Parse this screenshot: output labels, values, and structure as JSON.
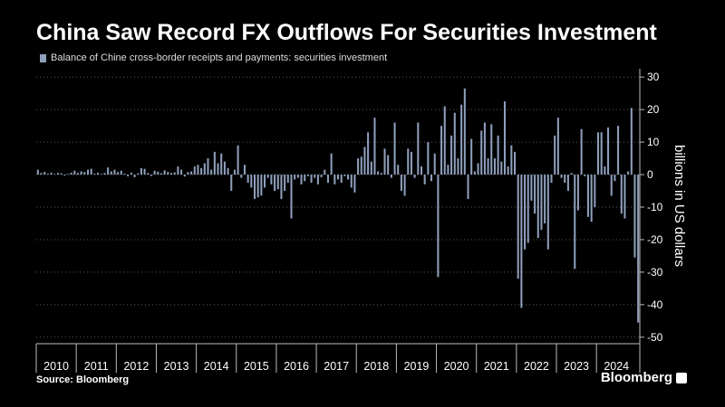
{
  "title": "China Saw Record FX Outflows For Securities Investment",
  "source": "Source: Bloomberg",
  "brand": "Bloomberg",
  "colors": {
    "bar": "#8fa0bd",
    "background": "#000000",
    "grid": "#5a5a5a",
    "text": "#ffffff"
  },
  "chart_data": {
    "type": "bar",
    "title": "China Saw Record FX Outflows For Securities Investment",
    "ylabel": "billions in US dollars",
    "y_axis_side": "right",
    "ylim": [
      -52,
      32
    ],
    "yticks": [
      30,
      20,
      10,
      0,
      -10,
      -20,
      -30,
      -40,
      -50
    ],
    "grid": true,
    "legend": "top-left",
    "x_axis_labels": [
      "2010",
      "2011",
      "2012",
      "2013",
      "2014",
      "2015",
      "2016",
      "2017",
      "2018",
      "2019",
      "2020",
      "2021",
      "2022",
      "2023",
      "2024"
    ],
    "series": [
      {
        "name": "Balance of Chine cross-border receipts and payments: securities investment",
        "frequency": "monthly",
        "start": "2010-01",
        "end": "2024-09",
        "values": [
          1.5,
          0.5,
          0.8,
          0.3,
          0.6,
          0.2,
          0.5,
          0.4,
          -0.3,
          0.2,
          0.6,
          1.2,
          0.5,
          1.0,
          0.8,
          1.5,
          1.8,
          0.3,
          0.6,
          0.2,
          0.5,
          2.2,
          1.0,
          1.5,
          0.8,
          1.2,
          0.3,
          -0.5,
          0.6,
          -0.8,
          0.4,
          2.0,
          1.8,
          0.5,
          -0.4,
          1.2,
          0.9,
          0.4,
          1.3,
          0.8,
          0.5,
          0.7,
          2.5,
          1.5,
          -0.6,
          0.8,
          1.0,
          2.5,
          3.0,
          2.0,
          3.5,
          5.0,
          1.5,
          7.0,
          3.5,
          6.5,
          4.0,
          2.0,
          -5.0,
          1.5,
          9.0,
          -1.0,
          3.0,
          -2.5,
          -4.0,
          -7.5,
          -7.0,
          -6.5,
          -4.0,
          -1.0,
          -3.0,
          -5.0,
          -4.5,
          -7.5,
          -5.0,
          -2.5,
          -13.5,
          -1.5,
          -1.0,
          -3.0,
          -2.0,
          -0.5,
          -2.5,
          -1.0,
          -3.0,
          -0.8,
          1.5,
          -2.5,
          6.5,
          -3.0,
          -1.5,
          -2.5,
          -0.5,
          -1.5,
          -4.0,
          -5.5,
          5.0,
          5.5,
          8.5,
          13.0,
          4.0,
          17.5,
          1.0,
          0.5,
          8.0,
          6.0,
          -1.0,
          16.0,
          3.0,
          -5.0,
          -6.5,
          8.0,
          7.0,
          -1.0,
          16.0,
          2.5,
          -3.0,
          10.0,
          -2.0,
          6.5,
          -31.5,
          15.0,
          21.0,
          3.0,
          12.0,
          19.0,
          5.0,
          21.5,
          26.5,
          -7.5,
          11.0,
          1.0,
          3.5,
          13.5,
          16.0,
          5.0,
          15.5,
          5.0,
          12.0,
          4.0,
          22.5,
          2.5,
          9.0,
          7.0,
          -32.0,
          -41.0,
          -23.0,
          -21.0,
          -8.0,
          -12.0,
          -19.5,
          -17.0,
          -15.0,
          -23.0,
          -2.5,
          12.0,
          17.5,
          -1.0,
          -2.5,
          -5.0,
          0.5,
          -29.0,
          -11.0,
          14.0,
          -0.5,
          -13.0,
          -14.5,
          -10.0,
          13.0,
          13.0,
          2.5,
          14.5,
          -6.5,
          -2.0,
          15.0,
          -12.0,
          -13.5,
          1.0,
          20.5,
          -25.5,
          -45.5
        ]
      }
    ]
  }
}
